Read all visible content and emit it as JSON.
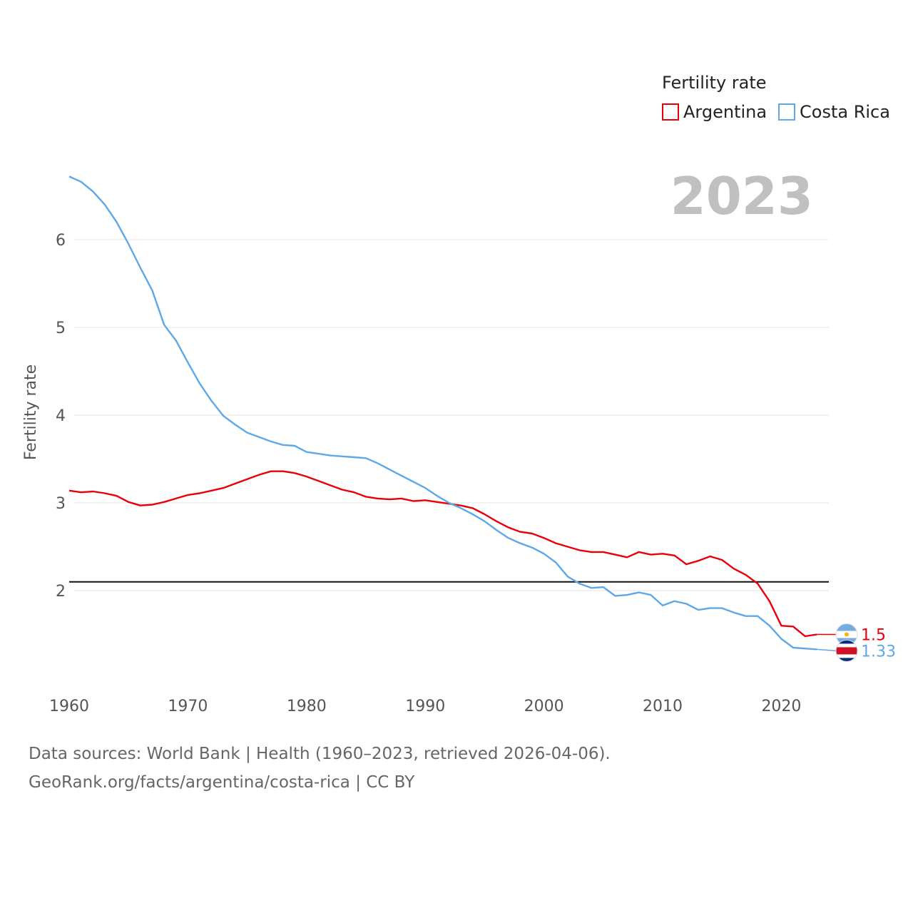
{
  "chart_data": {
    "type": "line",
    "year_label": "2023",
    "ylabel": "Fertility rate",
    "xlabel": "",
    "xlim": [
      1960,
      2024
    ],
    "ylim": [
      1.0,
      6.9
    ],
    "yticks": [
      2,
      3,
      4,
      5,
      6
    ],
    "xticks": [
      1960,
      1970,
      1980,
      1990,
      2000,
      2010,
      2020
    ],
    "reference_line": 2.1,
    "legend": {
      "title": "Fertility rate",
      "placement": "top-right"
    },
    "series": [
      {
        "name": "Argentina",
        "color": "#e8000b",
        "end_label": "1.5",
        "x": [
          1960,
          1961,
          1962,
          1963,
          1964,
          1965,
          1966,
          1967,
          1968,
          1969,
          1970,
          1971,
          1972,
          1973,
          1974,
          1975,
          1976,
          1977,
          1978,
          1979,
          1980,
          1981,
          1982,
          1983,
          1984,
          1985,
          1986,
          1987,
          1988,
          1989,
          1990,
          1991,
          1992,
          1993,
          1994,
          1995,
          1996,
          1997,
          1998,
          1999,
          2000,
          2001,
          2002,
          2003,
          2004,
          2005,
          2006,
          2007,
          2008,
          2009,
          2010,
          2011,
          2012,
          2013,
          2014,
          2015,
          2016,
          2017,
          2018,
          2019,
          2020,
          2021,
          2022,
          2023
        ],
        "values": [
          3.14,
          3.12,
          3.13,
          3.11,
          3.08,
          3.01,
          2.97,
          2.98,
          3.01,
          3.05,
          3.09,
          3.11,
          3.14,
          3.17,
          3.22,
          3.27,
          3.32,
          3.36,
          3.36,
          3.34,
          3.3,
          3.25,
          3.2,
          3.15,
          3.12,
          3.07,
          3.05,
          3.04,
          3.05,
          3.02,
          3.03,
          3.01,
          2.99,
          2.97,
          2.94,
          2.87,
          2.79,
          2.72,
          2.67,
          2.65,
          2.6,
          2.54,
          2.5,
          2.46,
          2.44,
          2.44,
          2.41,
          2.38,
          2.44,
          2.41,
          2.42,
          2.4,
          2.3,
          2.34,
          2.39,
          2.35,
          2.25,
          2.18,
          2.08,
          1.88,
          1.6,
          1.59,
          1.48,
          1.5
        ]
      },
      {
        "name": "Costa Rica",
        "color": "#5fa8e8",
        "end_label": "1.33",
        "x": [
          1960,
          1961,
          1962,
          1963,
          1964,
          1965,
          1966,
          1967,
          1968,
          1969,
          1970,
          1971,
          1972,
          1973,
          1974,
          1975,
          1976,
          1977,
          1978,
          1979,
          1980,
          1981,
          1982,
          1983,
          1984,
          1985,
          1986,
          1987,
          1988,
          1989,
          1990,
          1991,
          1992,
          1993,
          1994,
          1995,
          1996,
          1997,
          1998,
          1999,
          2000,
          2001,
          2002,
          2003,
          2004,
          2005,
          2006,
          2007,
          2008,
          2009,
          2010,
          2011,
          2012,
          2013,
          2014,
          2015,
          2016,
          2017,
          2018,
          2019,
          2020,
          2021,
          2022,
          2023
        ],
        "values": [
          6.72,
          6.66,
          6.55,
          6.4,
          6.2,
          5.95,
          5.68,
          5.42,
          5.03,
          4.85,
          4.6,
          4.36,
          4.16,
          3.99,
          3.89,
          3.8,
          3.75,
          3.7,
          3.66,
          3.65,
          3.58,
          3.56,
          3.54,
          3.53,
          3.52,
          3.51,
          3.45,
          3.38,
          3.31,
          3.24,
          3.17,
          3.08,
          3.0,
          2.94,
          2.87,
          2.79,
          2.69,
          2.6,
          2.54,
          2.49,
          2.42,
          2.32,
          2.16,
          2.08,
          2.03,
          2.04,
          1.94,
          1.95,
          1.98,
          1.95,
          1.83,
          1.88,
          1.85,
          1.78,
          1.8,
          1.8,
          1.75,
          1.71,
          1.71,
          1.6,
          1.45,
          1.35,
          1.34,
          1.33
        ]
      }
    ]
  },
  "footer": {
    "source_line": "Data sources: World Bank | Health (1960–2023, retrieved 2026-04-06).",
    "license_line": "GeoRank.org/facts/argentina/costa-rica | CC BY"
  }
}
